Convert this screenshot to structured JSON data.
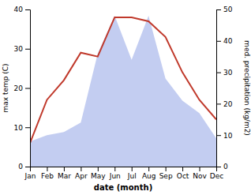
{
  "chart_data": {
    "type": "line",
    "xlabel": "date (month)",
    "ylabel": "max temp (C)",
    "y2label": "med. precipitation (kg/m2)",
    "categories": [
      "Jan",
      "Feb",
      "Mar",
      "Apr",
      "May",
      "Jun",
      "Jul",
      "Aug",
      "Sep",
      "Oct",
      "Nov",
      "Dec"
    ],
    "series": [
      {
        "type": "area",
        "axis": "y2",
        "color": "#b8c4ef",
        "values": [
          8,
          10,
          11,
          14,
          36,
          48,
          34,
          48,
          28,
          21,
          17,
          9
        ]
      },
      {
        "type": "line",
        "color": "#c0392b",
        "values": [
          6,
          17,
          22,
          29,
          28,
          38,
          38,
          37,
          33,
          24,
          17,
          12
        ]
      }
    ],
    "ylim": [
      0,
      40
    ],
    "yticks": [
      0,
      10,
      20,
      30,
      40
    ],
    "y2lim": [
      0,
      50
    ],
    "y2ticks": [
      0,
      10,
      20,
      30,
      40,
      50
    ]
  }
}
